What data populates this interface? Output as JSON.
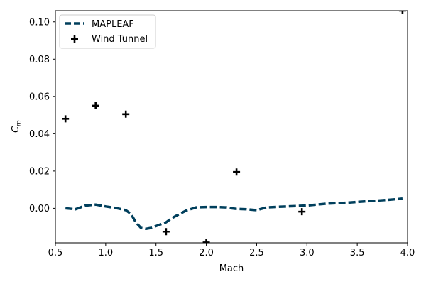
{
  "chart_data": {
    "type": "line",
    "xlabel": "Mach",
    "ylabel_main": "C",
    "ylabel_sub": "m",
    "xlim": [
      0.5,
      4.0
    ],
    "ylim": [
      -0.0185,
      0.106
    ],
    "xticks": [
      0.5,
      1.0,
      1.5,
      2.0,
      2.5,
      3.0,
      3.5,
      4.0
    ],
    "xtick_labels": [
      "0.5",
      "1.0",
      "1.5",
      "2.0",
      "2.5",
      "3.0",
      "3.5",
      "4.0"
    ],
    "yticks": [
      0.0,
      0.02,
      0.04,
      0.06,
      0.08,
      0.1
    ],
    "ytick_labels": [
      "0.00",
      "0.02",
      "0.04",
      "0.06",
      "0.08",
      "0.10"
    ],
    "grid": false,
    "legend_position": "top-left",
    "series": [
      {
        "name": "MAPLEAF",
        "kind": "line",
        "style": "dashed",
        "color": "#003f5c",
        "x": [
          0.6,
          0.7,
          0.8,
          0.9,
          1.0,
          1.1,
          1.2,
          1.25,
          1.3,
          1.35,
          1.4,
          1.45,
          1.5,
          1.55,
          1.6,
          1.65,
          1.7,
          1.8,
          1.9,
          2.0,
          2.1,
          2.2,
          2.25,
          2.3,
          2.4,
          2.5,
          2.6,
          2.8,
          3.0,
          3.2,
          3.4,
          3.6,
          3.8,
          3.95
        ],
        "y": [
          0.0,
          -0.0005,
          0.0015,
          0.002,
          0.001,
          0.0002,
          -0.001,
          -0.003,
          -0.0075,
          -0.0105,
          -0.011,
          -0.0105,
          -0.0095,
          -0.0085,
          -0.0075,
          -0.0055,
          -0.004,
          -0.0012,
          0.0005,
          0.0007,
          0.0007,
          0.0005,
          0.0,
          -0.0003,
          -0.0005,
          -0.001,
          0.0005,
          0.001,
          0.0015,
          0.0025,
          0.003,
          0.0038,
          0.0045,
          0.0052
        ]
      },
      {
        "name": "Wind Tunnel",
        "kind": "scatter",
        "marker": "plus",
        "color": "#000000",
        "x": [
          0.6,
          0.9,
          1.2,
          1.6,
          2.0,
          2.3,
          2.95,
          3.95
        ],
        "y": [
          0.048,
          0.055,
          0.0505,
          -0.0125,
          -0.0183,
          0.0195,
          -0.0018,
          0.106
        ]
      }
    ]
  }
}
